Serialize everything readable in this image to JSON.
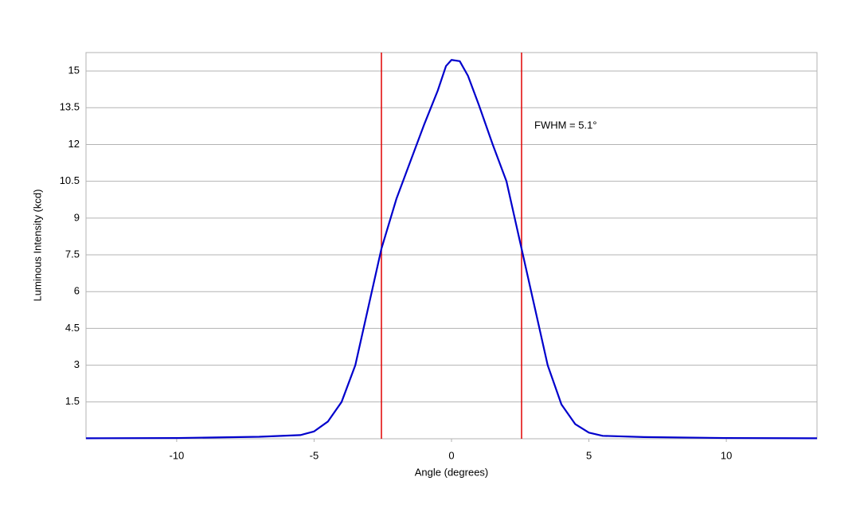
{
  "chart_data": {
    "type": "line",
    "x_label": "Angle (degrees)",
    "y_label": "Luminous Intensity (kcd)",
    "annotation": "FWHM = 5.1°",
    "x": [
      -13.3,
      -10,
      -7,
      -5.5,
      -5,
      -4.5,
      -4,
      -3.5,
      -3,
      -2.55,
      -2,
      -1.5,
      -1,
      -0.5,
      -0.2,
      0,
      0.3,
      0.6,
      1,
      1.5,
      2,
      2.55,
      3,
      3.5,
      4,
      4.5,
      5,
      5.5,
      7,
      10,
      13.3
    ],
    "series": [
      {
        "color": "#0000cc",
        "values": [
          0.02,
          0.03,
          0.08,
          0.15,
          0.3,
          0.7,
          1.5,
          3.0,
          5.5,
          7.75,
          9.8,
          11.3,
          12.8,
          14.2,
          15.2,
          15.45,
          15.4,
          14.8,
          13.6,
          12.0,
          10.5,
          7.75,
          5.5,
          3.0,
          1.4,
          0.6,
          0.25,
          0.12,
          0.07,
          0.03,
          0.02
        ]
      }
    ],
    "vlines": {
      "x": [
        -2.55,
        2.55
      ],
      "color": "#e00000"
    },
    "xlim": [
      -13.3,
      13.3
    ],
    "xticks": [
      -10,
      -5,
      0,
      5,
      10
    ],
    "ylim": [
      0,
      15.75
    ],
    "yticks": [
      1.5,
      3,
      4.5,
      6,
      7.5,
      9,
      10.5,
      12,
      13.5,
      15
    ],
    "grid": true
  }
}
